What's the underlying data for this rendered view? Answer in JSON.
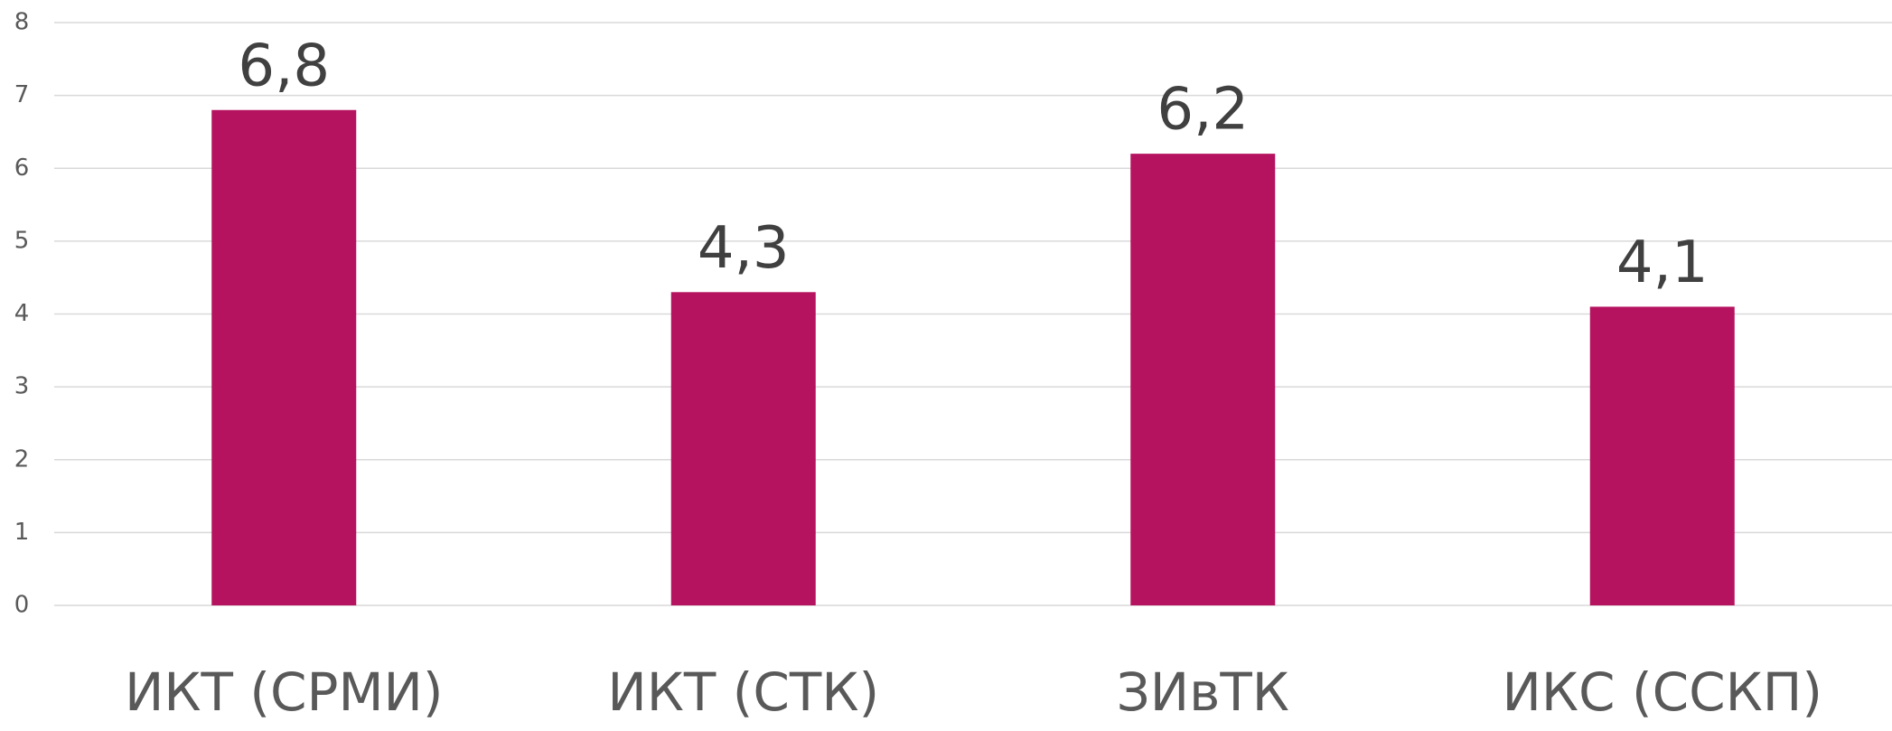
{
  "chart_data": {
    "type": "bar",
    "categories": [
      "ИКТ (СРМИ)",
      "ИКТ (СТК)",
      "ЗИвТК",
      "ИКС (ССКП)"
    ],
    "values": [
      6.8,
      4.3,
      6.2,
      4.1
    ],
    "value_labels": [
      "6,8",
      "4,3",
      "6,2",
      "4,1"
    ],
    "color": "#b5135f",
    "ylim": [
      0,
      8
    ],
    "yticks": [
      0,
      1,
      2,
      3,
      4,
      5,
      6,
      7,
      8
    ],
    "grid": true
  }
}
